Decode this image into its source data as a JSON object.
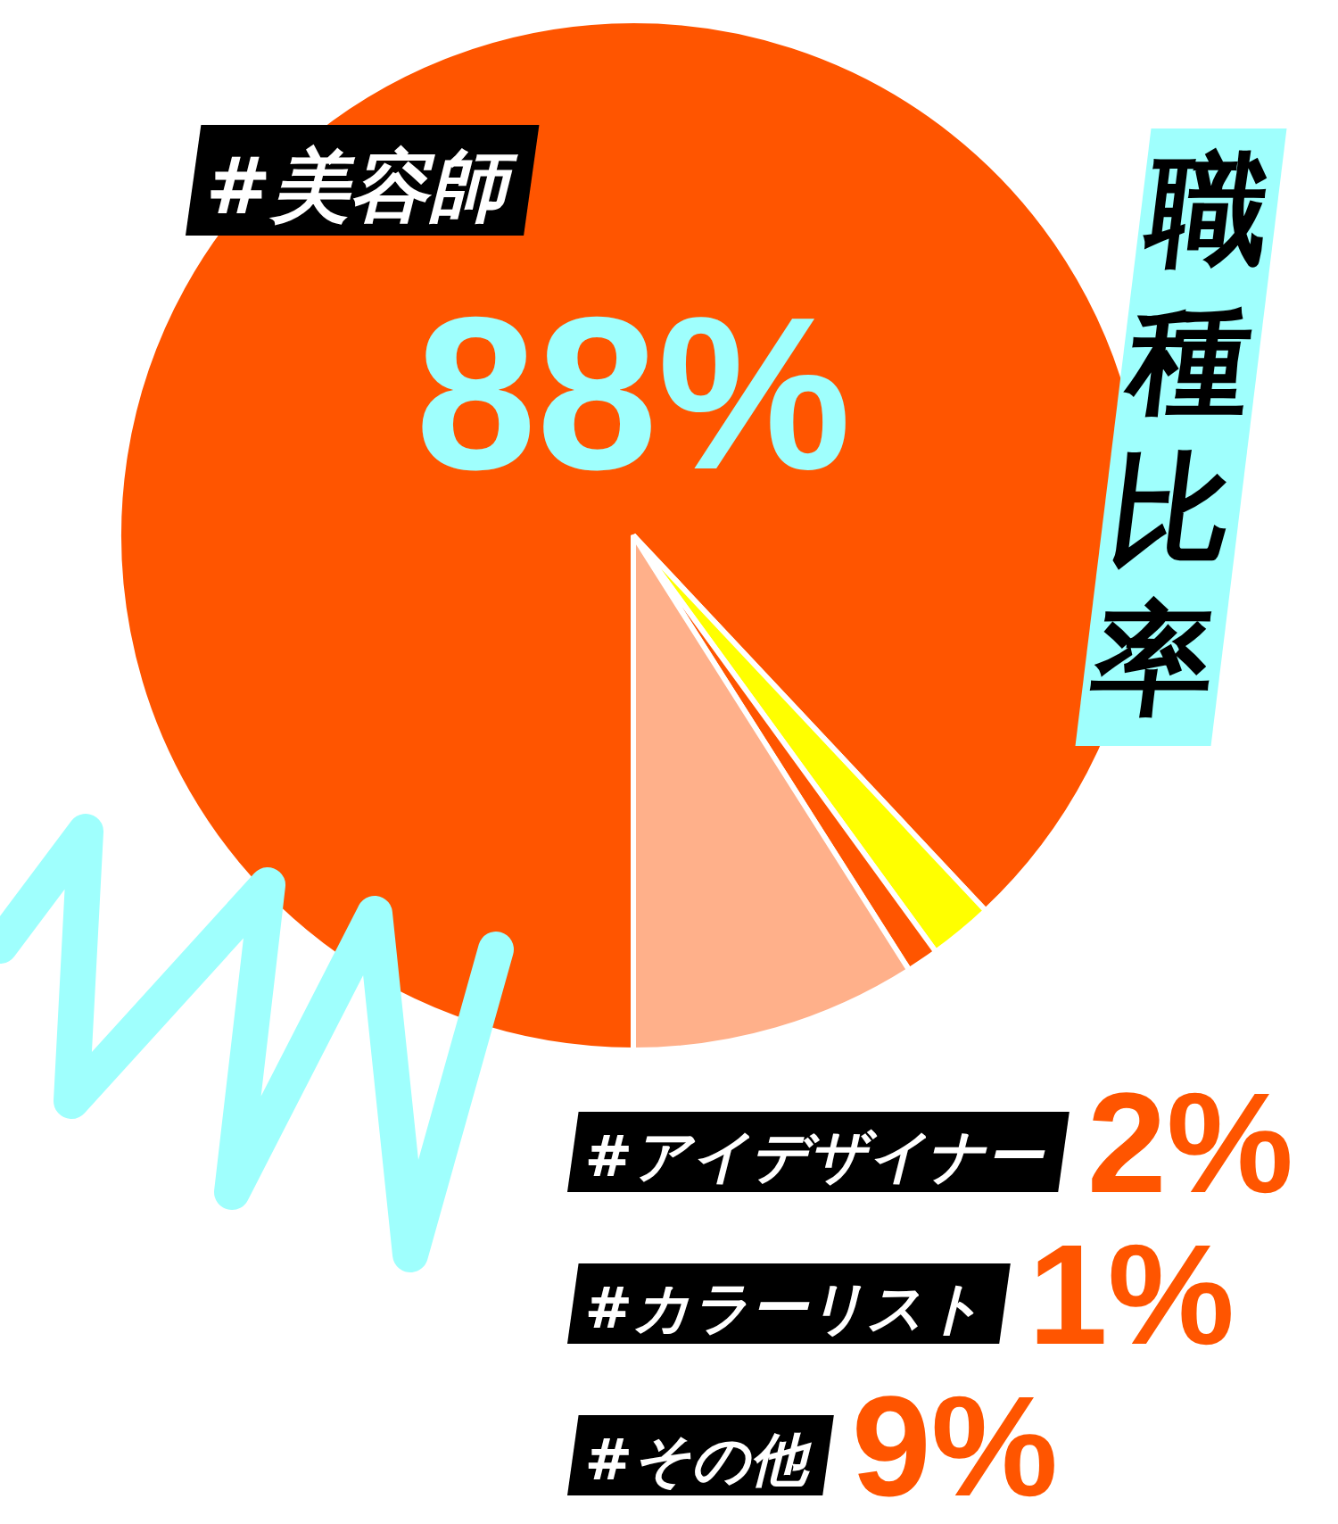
{
  "chart_data": {
    "type": "pie",
    "title": "職種比率",
    "categories": [
      "#美容師",
      "#アイデザイナー",
      "#カラーリスト",
      "#その他"
    ],
    "values": [
      88,
      2,
      1,
      9
    ],
    "colors": [
      "#ff5500",
      "#ffff00",
      "#ff5500",
      "#ffb08a"
    ],
    "value_labels": [
      "88%",
      "2%",
      "1%",
      "9%"
    ]
  }
}
